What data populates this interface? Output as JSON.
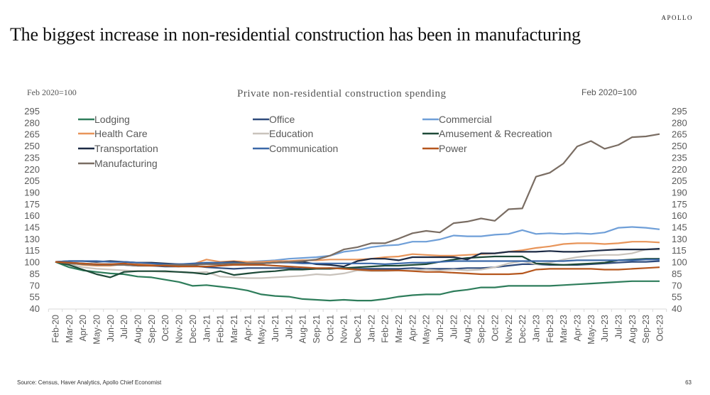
{
  "brand": "APOLLO",
  "headline": "The biggest increase in non-residential construction has been in manufacturing",
  "footer": {
    "source": "Source: Census, Haver Analytics, Apollo Chief Economist",
    "page_number": "63"
  },
  "chart_data": {
    "type": "line",
    "title": "Private non-residential construction spending",
    "ylabel_left": "Feb 2020=100",
    "ylabel_right": "Feb 2020=100",
    "xlabel": "",
    "ylim": [
      40,
      295
    ],
    "yticks": [
      40,
      55,
      70,
      85,
      100,
      115,
      130,
      145,
      160,
      175,
      190,
      205,
      220,
      235,
      250,
      265,
      280,
      295
    ],
    "grid": false,
    "legend_position": "top",
    "x": [
      "Feb-20",
      "Mar-20",
      "Apr-20",
      "May-20",
      "Jun-20",
      "Jul-20",
      "Aug-20",
      "Sep-20",
      "Oct-20",
      "Nov-20",
      "Dec-20",
      "Jan-21",
      "Feb-21",
      "Mar-21",
      "Apr-21",
      "May-21",
      "Jun-21",
      "Jul-21",
      "Aug-21",
      "Sep-21",
      "Oct-21",
      "Nov-21",
      "Dec-21",
      "Jan-22",
      "Feb-22",
      "Mar-22",
      "Apr-22",
      "May-22",
      "Jun-22",
      "Jul-22",
      "Aug-22",
      "Sep-22",
      "Oct-22",
      "Nov-22",
      "Dec-22",
      "Jan-23",
      "Feb-23",
      "Mar-23",
      "Apr-23",
      "May-23",
      "Jun-23",
      "Jul-23",
      "Aug-23",
      "Sep-23",
      "Oct-23"
    ],
    "series": [
      {
        "name": "Lodging",
        "color": "#2e7d5b",
        "values": [
          100,
          93,
          89,
          87,
          85,
          84,
          81,
          80,
          77,
          74,
          69,
          70,
          68,
          66,
          63,
          58,
          56,
          55,
          52,
          51,
          50,
          51,
          50,
          50,
          52,
          55,
          57,
          58,
          58,
          62,
          64,
          67,
          67,
          69,
          69,
          69,
          69,
          70,
          71,
          72,
          73,
          74,
          75,
          75,
          75
        ]
      },
      {
        "name": "Office",
        "color": "#2f4b7c",
        "values": [
          100,
          99,
          98,
          97,
          97,
          96,
          95,
          95,
          94,
          94,
          95,
          93,
          92,
          91,
          92,
          92,
          92,
          92,
          91,
          91,
          92,
          92,
          91,
          91,
          91,
          91,
          92,
          91,
          91,
          91,
          92,
          92,
          93,
          95,
          97,
          97,
          96,
          96,
          96,
          97,
          98,
          99,
          100,
          100,
          101
        ]
      },
      {
        "name": "Commercial",
        "color": "#6f9fd8",
        "values": [
          100,
          98,
          97,
          96,
          96,
          97,
          97,
          97,
          96,
          96,
          97,
          98,
          99,
          100,
          100,
          101,
          102,
          104,
          105,
          106,
          108,
          113,
          115,
          119,
          121,
          122,
          126,
          126,
          129,
          134,
          133,
          133,
          135,
          136,
          141,
          136,
          137,
          136,
          137,
          136,
          138,
          144,
          145,
          144,
          142
        ]
      },
      {
        "name": "Health Care",
        "color": "#e8955a",
        "values": [
          100,
          99,
          96,
          95,
          95,
          97,
          97,
          96,
          95,
          96,
          97,
          103,
          100,
          101,
          100,
          100,
          101,
          101,
          102,
          102,
          103,
          103,
          103,
          104,
          106,
          107,
          110,
          109,
          108,
          108,
          109,
          110,
          111,
          113,
          115,
          118,
          120,
          123,
          124,
          124,
          123,
          124,
          126,
          126,
          125
        ]
      },
      {
        "name": "Education",
        "color": "#c9c3bc",
        "values": [
          100,
          97,
          93,
          91,
          90,
          89,
          88,
          88,
          87,
          87,
          86,
          87,
          81,
          80,
          79,
          79,
          80,
          81,
          82,
          84,
          83,
          85,
          89,
          88,
          88,
          89,
          89,
          90,
          89,
          90,
          89,
          90,
          93,
          98,
          101,
          97,
          99,
          103,
          106,
          108,
          109,
          109,
          111,
          116,
          116
        ]
      },
      {
        "name": "Amusement & Recreation",
        "color": "#1e4a38",
        "values": [
          100,
          96,
          90,
          84,
          80,
          87,
          88,
          88,
          88,
          87,
          86,
          84,
          88,
          83,
          85,
          87,
          88,
          90,
          90,
          91,
          91,
          92,
          93,
          94,
          95,
          95,
          96,
          97,
          100,
          103,
          105,
          106,
          107,
          107,
          107,
          98,
          97,
          96,
          97,
          98,
          99,
          102,
          103,
          104,
          104
        ]
      },
      {
        "name": "Transportation",
        "color": "#1c2a45",
        "values": [
          100,
          101,
          101,
          100,
          101,
          100,
          99,
          99,
          98,
          97,
          97,
          98,
          99,
          100,
          98,
          98,
          99,
          100,
          100,
          97,
          96,
          94,
          101,
          104,
          104,
          102,
          106,
          106,
          106,
          106,
          103,
          111,
          111,
          113,
          113,
          113,
          114,
          113,
          113,
          114,
          115,
          116,
          116,
          116,
          117
        ]
      },
      {
        "name": "Communication",
        "color": "#3a68a8",
        "values": [
          100,
          101,
          101,
          101,
          100,
          100,
          99,
          98,
          97,
          97,
          98,
          99,
          99,
          99,
          98,
          98,
          99,
          99,
          98,
          98,
          98,
          98,
          98,
          98,
          97,
          98,
          99,
          99,
          100,
          101,
          101,
          101,
          101,
          101,
          101,
          101,
          101,
          101,
          102,
          102,
          102,
          102,
          102,
          103,
          103
        ]
      },
      {
        "name": "Manufacturing",
        "color": "#7a6d63",
        "values": [
          100,
          98,
          97,
          96,
          96,
          96,
          95,
          95,
          96,
          96,
          96,
          97,
          97,
          98,
          98,
          98,
          99,
          100,
          101,
          103,
          108,
          116,
          119,
          124,
          124,
          130,
          137,
          140,
          138,
          150,
          152,
          156,
          153,
          168,
          169,
          210,
          215,
          227,
          249,
          256,
          246,
          251,
          261,
          262,
          265
        ]
      },
      {
        "name": "Power",
        "color": "#b5561d",
        "values": [
          100,
          99,
          98,
          97,
          97,
          98,
          96,
          95,
          95,
          94,
          94,
          94,
          95,
          96,
          96,
          96,
          95,
          94,
          93,
          92,
          92,
          91,
          90,
          89,
          89,
          89,
          88,
          87,
          87,
          86,
          85,
          84,
          84,
          84,
          85,
          90,
          91,
          91,
          91,
          91,
          90,
          90,
          91,
          92,
          93
        ]
      }
    ]
  }
}
